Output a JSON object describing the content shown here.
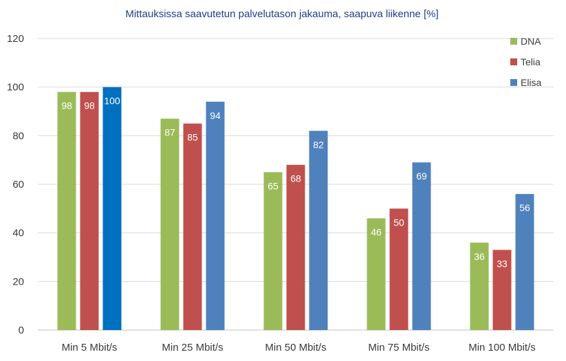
{
  "chart_data": {
    "type": "bar",
    "title": "Mittauksissa saavutetun palvelutason jakauma, saapuva liikenne [%]",
    "categories": [
      "Min 5 Mbit/s",
      "Min 25 Mbit/s",
      "Min 50 Mbit/s",
      "Min 75 Mbit/s",
      "Min 100 Mbit/s"
    ],
    "series": [
      {
        "name": "DNA",
        "color": "#9BBB59",
        "values": [
          98,
          87,
          65,
          46,
          36
        ]
      },
      {
        "name": "Telia",
        "color": "#C0504D",
        "values": [
          98,
          85,
          68,
          50,
          33
        ]
      },
      {
        "name": "Elisa",
        "color": "#4F81BD",
        "values": [
          100,
          94,
          82,
          69,
          56
        ]
      }
    ],
    "highlight": {
      "series": 2,
      "category": 0,
      "color": "#0070C0"
    },
    "ylim": [
      0,
      120
    ],
    "yticks": [
      0,
      20,
      40,
      60,
      80,
      100,
      120
    ],
    "grid": true,
    "legend_position": "top-right",
    "xlabel": "",
    "ylabel": ""
  }
}
